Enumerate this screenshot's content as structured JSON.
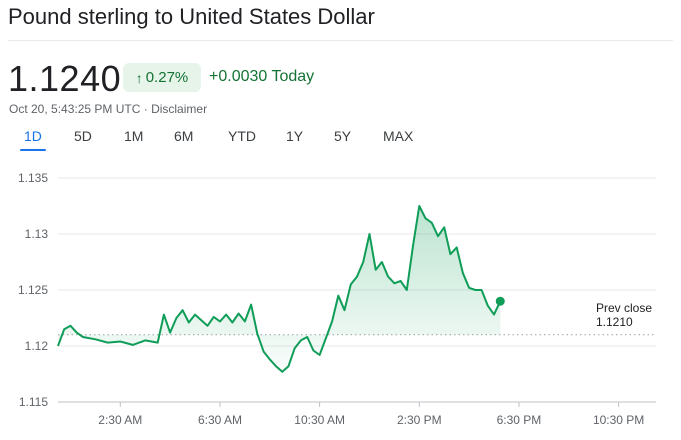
{
  "header": {
    "title": "Pound sterling to United States Dollar"
  },
  "quote": {
    "price": "1.1240",
    "change_percent": "0.27%",
    "change_abs": "+0.0030 Today",
    "timestamp": "Oct 20, 5:43:25 PM UTC",
    "separator": " · ",
    "disclaimer": "Disclaimer",
    "accent_color": "#137333",
    "badge_bg": "#e6f4ea",
    "arrow_icon": "arrow-up-icon"
  },
  "tabs": [
    {
      "label": "1D",
      "active": true
    },
    {
      "label": "5D",
      "active": false
    },
    {
      "label": "1M",
      "active": false
    },
    {
      "label": "6M",
      "active": false
    },
    {
      "label": "YTD",
      "active": false
    },
    {
      "label": "1Y",
      "active": false
    },
    {
      "label": "5Y",
      "active": false
    },
    {
      "label": "MAX",
      "active": false
    }
  ],
  "chart_data": {
    "type": "area",
    "line_color": "#0f9d58",
    "fill_color": "#0f9d58",
    "ylim": [
      1.115,
      1.135
    ],
    "yticks": [
      "1.135",
      "1.13",
      "1.125",
      "1.12",
      "1.115"
    ],
    "ytick_values": [
      1.135,
      1.13,
      1.125,
      1.12,
      1.115
    ],
    "xlim": [
      0,
      24
    ],
    "xticks": [
      "2:30 AM",
      "6:30 AM",
      "10:30 AM",
      "2:30 PM",
      "6:30 PM",
      "10:30 PM"
    ],
    "xtick_values": [
      2.5,
      6.5,
      10.5,
      14.5,
      18.5,
      22.5
    ],
    "prev_close": 1.121,
    "prev_close_label": "Prev close",
    "prev_close_value": "1.1210",
    "grid": true,
    "x": [
      0,
      0.25,
      0.5,
      0.75,
      1,
      1.5,
      2,
      2.5,
      3,
      3.5,
      4,
      4.25,
      4.5,
      4.75,
      5,
      5.25,
      5.5,
      5.75,
      6,
      6.25,
      6.5,
      6.75,
      7,
      7.25,
      7.5,
      7.75,
      8,
      8.25,
      8.5,
      8.75,
      9,
      9.25,
      9.5,
      9.75,
      10,
      10.25,
      10.5,
      10.75,
      11,
      11.25,
      11.5,
      11.75,
      12,
      12.25,
      12.5,
      12.75,
      13,
      13.25,
      13.5,
      13.75,
      14,
      14.25,
      14.5,
      14.75,
      15,
      15.25,
      15.5,
      15.75,
      16,
      16.25,
      16.5,
      16.75,
      17,
      17.25,
      17.5,
      17.75
    ],
    "y": [
      1.12,
      1.1215,
      1.1218,
      1.1212,
      1.1208,
      1.1206,
      1.1203,
      1.1204,
      1.1201,
      1.1205,
      1.1203,
      1.1228,
      1.1212,
      1.1225,
      1.1232,
      1.1221,
      1.1228,
      1.1223,
      1.1218,
      1.1226,
      1.1222,
      1.1228,
      1.1221,
      1.1229,
      1.1222,
      1.1237,
      1.1211,
      1.1195,
      1.1188,
      1.1182,
      1.1177,
      1.1182,
      1.1198,
      1.1205,
      1.1208,
      1.1196,
      1.1192,
      1.1207,
      1.1222,
      1.1245,
      1.1232,
      1.1255,
      1.1262,
      1.1275,
      1.13,
      1.1268,
      1.1275,
      1.1262,
      1.1256,
      1.1258,
      1.125,
      1.129,
      1.1325,
      1.1314,
      1.131,
      1.1298,
      1.1306,
      1.1282,
      1.1288,
      1.1265,
      1.1252,
      1.125,
      1.125,
      1.1236,
      1.1228,
      1.124
    ]
  }
}
